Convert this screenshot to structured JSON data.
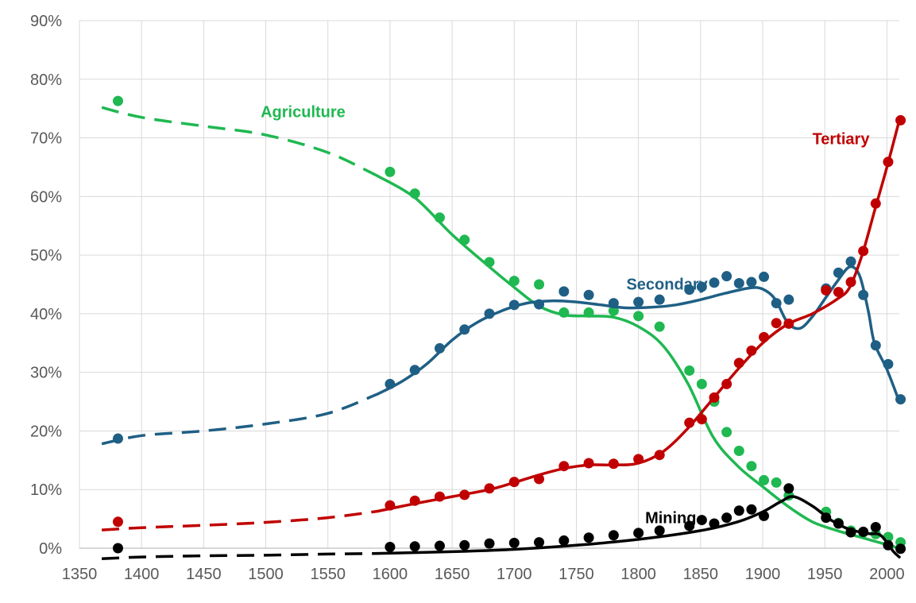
{
  "chart_data": {
    "type": "scatter",
    "title": "",
    "xlabel": "",
    "ylabel": "",
    "xlim": [
      1350,
      2010
    ],
    "ylim": [
      0,
      90
    ],
    "grid": true,
    "x_ticks": [
      "1350",
      "1400",
      "1450",
      "1500",
      "1550",
      "1600",
      "1650",
      "1700",
      "1750",
      "1800",
      "1850",
      "1900",
      "1950",
      "2000"
    ],
    "y_ticks": [
      "0%",
      "10%",
      "20%",
      "30%",
      "40%",
      "50%",
      "60%",
      "70%",
      "80%",
      "90%"
    ],
    "series": [
      {
        "name": "Agriculture",
        "color": "#1fb851",
        "points": [
          [
            1381,
            76.3
          ],
          [
            1600,
            64.2
          ],
          [
            1620,
            60.5
          ],
          [
            1640,
            56.4
          ],
          [
            1660,
            52.6
          ],
          [
            1680,
            48.8
          ],
          [
            1700,
            45.6
          ],
          [
            1720,
            45.0
          ],
          [
            1740,
            40.2
          ],
          [
            1760,
            40.2
          ],
          [
            1780,
            40.5
          ],
          [
            1800,
            39.6
          ],
          [
            1817,
            37.8
          ],
          [
            1841,
            30.3
          ],
          [
            1851,
            28.0
          ],
          [
            1861,
            25.0
          ],
          [
            1871,
            19.8
          ],
          [
            1881,
            16.6
          ],
          [
            1891,
            14.0
          ],
          [
            1901,
            11.6
          ],
          [
            1911,
            11.2
          ],
          [
            1921,
            9.0
          ],
          [
            1951,
            6.2
          ],
          [
            1961,
            4.3
          ],
          [
            1971,
            3.0
          ],
          [
            1981,
            2.7
          ],
          [
            1991,
            2.4
          ],
          [
            2001,
            1.9
          ],
          [
            2011,
            1.0
          ]
        ],
        "trend_dashed": [
          [
            1368,
            75.2
          ],
          [
            1400,
            73.5
          ],
          [
            1450,
            72.0
          ],
          [
            1500,
            70.5
          ],
          [
            1550,
            67.5
          ],
          [
            1590,
            63.5
          ]
        ],
        "trend_solid": [
          [
            1590,
            63.5
          ],
          [
            1620,
            59.8
          ],
          [
            1650,
            53.5
          ],
          [
            1680,
            48.0
          ],
          [
            1700,
            44.5
          ],
          [
            1720,
            41.3
          ],
          [
            1740,
            39.8
          ],
          [
            1760,
            39.6
          ],
          [
            1780,
            39.4
          ],
          [
            1800,
            37.8
          ],
          [
            1820,
            34.5
          ],
          [
            1840,
            28.0
          ],
          [
            1860,
            19.0
          ],
          [
            1880,
            14.0
          ],
          [
            1900,
            10.5
          ],
          [
            1920,
            7.2
          ],
          [
            1940,
            4.5
          ],
          [
            1960,
            3.0
          ],
          [
            1980,
            1.8
          ],
          [
            2000,
            0.6
          ],
          [
            2008,
            0.1
          ]
        ]
      },
      {
        "name": "Secondary",
        "color": "#1f5f85",
        "points": [
          [
            1381,
            18.7
          ],
          [
            1600,
            28.0
          ],
          [
            1620,
            30.4
          ],
          [
            1640,
            34.1
          ],
          [
            1660,
            37.3
          ],
          [
            1680,
            40.0
          ],
          [
            1700,
            41.5
          ],
          [
            1720,
            41.6
          ],
          [
            1740,
            43.8
          ],
          [
            1760,
            43.2
          ],
          [
            1780,
            41.8
          ],
          [
            1800,
            42.0
          ],
          [
            1817,
            42.4
          ],
          [
            1841,
            44.1
          ],
          [
            1851,
            44.6
          ],
          [
            1861,
            45.3
          ],
          [
            1871,
            46.4
          ],
          [
            1881,
            45.2
          ],
          [
            1891,
            45.4
          ],
          [
            1901,
            46.3
          ],
          [
            1911,
            41.8
          ],
          [
            1921,
            42.4
          ],
          [
            1951,
            44.3
          ],
          [
            1961,
            47.0
          ],
          [
            1971,
            48.9
          ],
          [
            1981,
            43.2
          ],
          [
            1991,
            34.6
          ],
          [
            2001,
            31.4
          ],
          [
            2011,
            25.4
          ]
        ],
        "trend_dashed": [
          [
            1368,
            17.8
          ],
          [
            1400,
            19.2
          ],
          [
            1450,
            20.0
          ],
          [
            1500,
            21.2
          ],
          [
            1550,
            23.0
          ],
          [
            1590,
            26.3
          ]
        ],
        "trend_solid": [
          [
            1590,
            26.3
          ],
          [
            1610,
            28.5
          ],
          [
            1630,
            31.5
          ],
          [
            1650,
            35.5
          ],
          [
            1670,
            38.5
          ],
          [
            1690,
            40.5
          ],
          [
            1710,
            41.8
          ],
          [
            1730,
            42.2
          ],
          [
            1750,
            42.0
          ],
          [
            1770,
            41.5
          ],
          [
            1790,
            41.0
          ],
          [
            1810,
            41.1
          ],
          [
            1830,
            41.5
          ],
          [
            1850,
            42.4
          ],
          [
            1870,
            43.5
          ],
          [
            1890,
            44.4
          ],
          [
            1900,
            44.2
          ],
          [
            1910,
            42.5
          ],
          [
            1920,
            38.5
          ],
          [
            1930,
            37.5
          ],
          [
            1940,
            39.5
          ],
          [
            1950,
            42.5
          ],
          [
            1960,
            45.5
          ],
          [
            1970,
            48.0
          ],
          [
            1978,
            46.5
          ],
          [
            1985,
            40.5
          ],
          [
            1990,
            35.0
          ],
          [
            2000,
            30.5
          ],
          [
            2010,
            25.0
          ]
        ]
      },
      {
        "name": "Tertiary",
        "color": "#c00000",
        "points": [
          [
            1381,
            4.5
          ],
          [
            1600,
            7.3
          ],
          [
            1620,
            8.1
          ],
          [
            1640,
            8.8
          ],
          [
            1660,
            9.1
          ],
          [
            1680,
            10.2
          ],
          [
            1700,
            11.3
          ],
          [
            1720,
            11.8
          ],
          [
            1740,
            14.0
          ],
          [
            1760,
            14.5
          ],
          [
            1780,
            14.4
          ],
          [
            1800,
            15.2
          ],
          [
            1817,
            15.9
          ],
          [
            1841,
            21.4
          ],
          [
            1851,
            22.0
          ],
          [
            1861,
            25.7
          ],
          [
            1871,
            28.0
          ],
          [
            1881,
            31.6
          ],
          [
            1891,
            33.7
          ],
          [
            1901,
            36.0
          ],
          [
            1911,
            38.4
          ],
          [
            1921,
            38.3
          ],
          [
            1951,
            44.0
          ],
          [
            1961,
            43.7
          ],
          [
            1971,
            45.4
          ],
          [
            1981,
            50.7
          ],
          [
            1991,
            58.8
          ],
          [
            2001,
            65.9
          ],
          [
            2011,
            73.0
          ]
        ],
        "trend_dashed": [
          [
            1368,
            3.1
          ],
          [
            1400,
            3.5
          ],
          [
            1450,
            3.9
          ],
          [
            1500,
            4.4
          ],
          [
            1550,
            5.2
          ],
          [
            1590,
            6.3
          ]
        ],
        "trend_solid": [
          [
            1590,
            6.3
          ],
          [
            1620,
            7.6
          ],
          [
            1650,
            8.8
          ],
          [
            1680,
            10.0
          ],
          [
            1700,
            11.2
          ],
          [
            1720,
            12.5
          ],
          [
            1740,
            13.6
          ],
          [
            1760,
            14.2
          ],
          [
            1780,
            14.2
          ],
          [
            1800,
            14.5
          ],
          [
            1820,
            16.5
          ],
          [
            1840,
            20.5
          ],
          [
            1860,
            25.5
          ],
          [
            1880,
            30.5
          ],
          [
            1900,
            35.0
          ],
          [
            1920,
            38.2
          ],
          [
            1940,
            40.0
          ],
          [
            1960,
            42.5
          ],
          [
            1970,
            44.5
          ],
          [
            1980,
            50.0
          ],
          [
            1990,
            57.5
          ],
          [
            2000,
            65.0
          ],
          [
            2010,
            73.0
          ]
        ]
      },
      {
        "name": "Mining",
        "color": "#000000",
        "points": [
          [
            1381,
            0.0
          ],
          [
            1600,
            0.2
          ],
          [
            1620,
            0.3
          ],
          [
            1640,
            0.4
          ],
          [
            1660,
            0.5
          ],
          [
            1680,
            0.8
          ],
          [
            1700,
            0.9
          ],
          [
            1720,
            1.0
          ],
          [
            1740,
            1.3
          ],
          [
            1760,
            1.8
          ],
          [
            1780,
            2.2
          ],
          [
            1800,
            2.6
          ],
          [
            1817,
            3.0
          ],
          [
            1841,
            3.8
          ],
          [
            1851,
            4.8
          ],
          [
            1861,
            4.2
          ],
          [
            1871,
            5.2
          ],
          [
            1881,
            6.4
          ],
          [
            1891,
            6.6
          ],
          [
            1901,
            5.5
          ],
          [
            1921,
            10.2
          ],
          [
            1951,
            5.2
          ],
          [
            1961,
            4.2
          ],
          [
            1971,
            2.7
          ],
          [
            1981,
            2.8
          ],
          [
            1991,
            3.6
          ],
          [
            2001,
            0.5
          ],
          [
            2011,
            -0.1
          ]
        ],
        "trend_dashed": [
          [
            1368,
            -1.8
          ],
          [
            1400,
            -1.5
          ],
          [
            1450,
            -1.3
          ],
          [
            1500,
            -1.2
          ],
          [
            1550,
            -1.0
          ],
          [
            1590,
            -0.9
          ]
        ],
        "trend_solid": [
          [
            1590,
            -0.9
          ],
          [
            1650,
            -0.6
          ],
          [
            1700,
            -0.2
          ],
          [
            1750,
            0.5
          ],
          [
            1800,
            1.5
          ],
          [
            1850,
            3.0
          ],
          [
            1880,
            4.5
          ],
          [
            1900,
            6.2
          ],
          [
            1915,
            8.0
          ],
          [
            1925,
            8.8
          ],
          [
            1940,
            7.2
          ],
          [
            1955,
            4.8
          ],
          [
            1970,
            3.2
          ],
          [
            1985,
            2.5
          ],
          [
            1995,
            2.2
          ],
          [
            2005,
            -0.5
          ],
          [
            2010,
            -1.5
          ]
        ]
      }
    ],
    "annotations": [
      {
        "text": "Agriculture",
        "x": 1530,
        "y": 74.5,
        "color": "#1fb851"
      },
      {
        "text": "Secondary",
        "x": 1823,
        "y": 45.1,
        "color": "#1f5f85"
      },
      {
        "text": "Tertiary",
        "x": 1963,
        "y": 69.9,
        "color": "#c00000"
      },
      {
        "text": "Mining",
        "x": 1826,
        "y": 5.2,
        "color": "#000000"
      }
    ]
  }
}
